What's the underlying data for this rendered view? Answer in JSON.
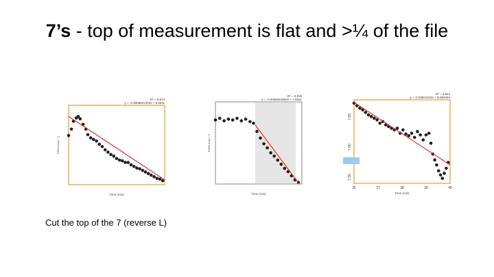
{
  "slide": {
    "title_bold": "7’s",
    "title_rest": " - top of measurement is flat and >¼ of the file",
    "caption": "Cut the top of the 7 (reverse L)"
  },
  "chart_data": [
    {
      "type": "scatter",
      "title": "",
      "xlabel": "Time (min)",
      "ylabel": "EtOH (mg L⁻¹)",
      "equation": "y = -0.0008647403x + 8.0611",
      "r2": "R² = 0.874",
      "frame_color": "#e8a040",
      "points": [
        [
          0.0,
          0.62
        ],
        [
          0.03,
          0.7
        ],
        [
          0.05,
          0.8
        ],
        [
          0.08,
          0.84
        ],
        [
          0.1,
          0.86
        ],
        [
          0.12,
          0.83
        ],
        [
          0.15,
          0.76
        ],
        [
          0.18,
          0.7
        ],
        [
          0.2,
          0.63
        ],
        [
          0.23,
          0.59
        ],
        [
          0.26,
          0.57
        ],
        [
          0.29,
          0.55
        ],
        [
          0.32,
          0.51
        ],
        [
          0.35,
          0.48
        ],
        [
          0.38,
          0.44
        ],
        [
          0.41,
          0.41
        ],
        [
          0.44,
          0.38
        ],
        [
          0.47,
          0.36
        ],
        [
          0.5,
          0.33
        ],
        [
          0.53,
          0.31
        ],
        [
          0.56,
          0.3
        ],
        [
          0.59,
          0.28
        ],
        [
          0.62,
          0.28
        ],
        [
          0.65,
          0.25
        ],
        [
          0.68,
          0.23
        ],
        [
          0.71,
          0.21
        ],
        [
          0.74,
          0.2
        ],
        [
          0.77,
          0.18
        ],
        [
          0.8,
          0.16
        ],
        [
          0.83,
          0.14
        ],
        [
          0.86,
          0.12
        ],
        [
          0.89,
          0.1
        ],
        [
          0.92,
          0.08
        ],
        [
          0.95,
          0.07
        ],
        [
          0.98,
          0.05
        ]
      ],
      "fit": [
        [
          0.0,
          0.86
        ],
        [
          1.0,
          0.06
        ]
      ]
    },
    {
      "type": "scatter",
      "title": "",
      "xlabel": "Time (min)",
      "ylabel": "EtOH (mg L⁻¹)",
      "equation": "y = -0.0008451584x + 7.8531",
      "r2": "R² = 0.819",
      "shaded_region": [
        0.46,
        0.93
      ],
      "points": [
        [
          0.0,
          0.78
        ],
        [
          0.05,
          0.8
        ],
        [
          0.1,
          0.77
        ],
        [
          0.15,
          0.79
        ],
        [
          0.2,
          0.78
        ],
        [
          0.25,
          0.8
        ],
        [
          0.3,
          0.77
        ],
        [
          0.35,
          0.79
        ],
        [
          0.4,
          0.76
        ],
        [
          0.44,
          0.74
        ],
        [
          0.48,
          0.64
        ],
        [
          0.52,
          0.56
        ],
        [
          0.56,
          0.49
        ],
        [
          0.6,
          0.44
        ],
        [
          0.64,
          0.38
        ],
        [
          0.68,
          0.34
        ],
        [
          0.72,
          0.29
        ],
        [
          0.76,
          0.24
        ],
        [
          0.8,
          0.19
        ],
        [
          0.84,
          0.15
        ],
        [
          0.88,
          0.1
        ],
        [
          0.92,
          0.05
        ],
        [
          0.96,
          0.02
        ]
      ],
      "fit": [
        [
          0.46,
          0.72
        ],
        [
          0.97,
          0.0
        ]
      ]
    },
    {
      "type": "scatter",
      "title": "",
      "xlabel": "Time (min)",
      "ylabel": "",
      "equation": "y = -0.03601916x + 8.962463",
      "r2": "R² = 0.824",
      "frame_color": "#e8a040",
      "x_ticks": [
        "36",
        "37",
        "38",
        "39",
        "40"
      ],
      "y_ticks": [
        "7.65",
        "7.60",
        "7.55"
      ],
      "points": [
        [
          0.0,
          0.96
        ],
        [
          0.03,
          0.93
        ],
        [
          0.06,
          0.9
        ],
        [
          0.09,
          0.88
        ],
        [
          0.12,
          0.85
        ],
        [
          0.15,
          0.82
        ],
        [
          0.18,
          0.8
        ],
        [
          0.21,
          0.78
        ],
        [
          0.24,
          0.76
        ],
        [
          0.27,
          0.72
        ],
        [
          0.3,
          0.74
        ],
        [
          0.33,
          0.7
        ],
        [
          0.36,
          0.68
        ],
        [
          0.39,
          0.66
        ],
        [
          0.42,
          0.64
        ],
        [
          0.45,
          0.66
        ],
        [
          0.48,
          0.6
        ],
        [
          0.51,
          0.64
        ],
        [
          0.54,
          0.59
        ],
        [
          0.57,
          0.57
        ],
        [
          0.6,
          0.6
        ],
        [
          0.63,
          0.55
        ],
        [
          0.66,
          0.62
        ],
        [
          0.69,
          0.58
        ],
        [
          0.72,
          0.52
        ],
        [
          0.75,
          0.58
        ],
        [
          0.78,
          0.6
        ],
        [
          0.8,
          0.48
        ],
        [
          0.82,
          0.35
        ],
        [
          0.84,
          0.28
        ],
        [
          0.86,
          0.22
        ],
        [
          0.88,
          0.15
        ],
        [
          0.9,
          0.1
        ],
        [
          0.92,
          0.06
        ],
        [
          0.94,
          0.12
        ],
        [
          0.96,
          0.18
        ],
        [
          0.98,
          0.25
        ]
      ],
      "fit": [
        [
          0.0,
          0.97
        ],
        [
          1.0,
          0.22
        ]
      ]
    }
  ]
}
